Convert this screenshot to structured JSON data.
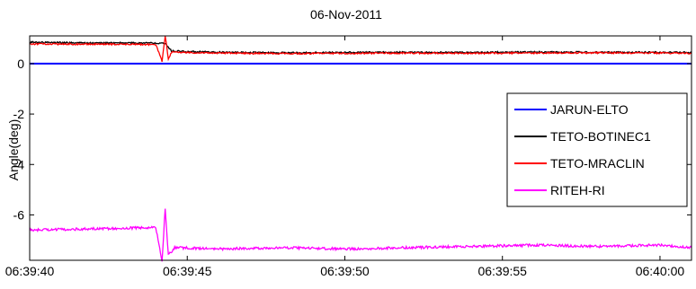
{
  "chart_data": {
    "type": "line",
    "title": "06-Nov-2011",
    "xlabel": "",
    "ylabel": "Angle(deg)",
    "xlim": [
      "06:39:40",
      "06:40:01"
    ],
    "ylim": [
      -7.8,
      1.1
    ],
    "x_ticks": [
      "06:39:40",
      "06:39:45",
      "06:39:50",
      "06:39:55",
      "06:40:00"
    ],
    "y_ticks": [
      0,
      -2,
      -4,
      -6
    ],
    "grid": false,
    "legend_position": "right",
    "series": [
      {
        "name": "JARUN-ELTO",
        "color": "#0000ff",
        "x": [
          "06:39:40",
          "06:40:01"
        ],
        "y": [
          0.0,
          0.0
        ]
      },
      {
        "name": "TETO-BOTINEC1",
        "color": "#000000",
        "x": [
          "06:39:40",
          "06:39:42",
          "06:39:44",
          "06:39:44.3",
          "06:39:44.5",
          "06:39:46",
          "06:39:48",
          "06:39:50",
          "06:39:52",
          "06:39:54",
          "06:39:56",
          "06:39:58",
          "06:40:00",
          "06:40:01"
        ],
        "y": [
          0.85,
          0.82,
          0.82,
          0.82,
          0.5,
          0.45,
          0.43,
          0.44,
          0.45,
          0.44,
          0.46,
          0.45,
          0.45,
          0.44
        ]
      },
      {
        "name": "TETO-MRACLIN",
        "color": "#ff0000",
        "x": [
          "06:39:40",
          "06:39:42",
          "06:39:44",
          "06:39:44.2",
          "06:39:44.3",
          "06:39:44.4",
          "06:39:44.5",
          "06:39:46",
          "06:39:48",
          "06:39:50",
          "06:39:52",
          "06:39:54",
          "06:39:56",
          "06:39:58",
          "06:40:00",
          "06:40:01"
        ],
        "y": [
          0.78,
          0.77,
          0.76,
          0.1,
          1.1,
          0.2,
          0.45,
          0.42,
          0.4,
          0.41,
          0.42,
          0.41,
          0.42,
          0.43,
          0.42,
          0.41
        ]
      },
      {
        "name": "RITEH-RI",
        "color": "#ff00ff",
        "x": [
          "06:39:40",
          "06:39:42",
          "06:39:44",
          "06:39:44.2",
          "06:39:44.3",
          "06:39:44.4",
          "06:39:44.6",
          "06:39:46",
          "06:39:48",
          "06:39:50",
          "06:39:52",
          "06:39:54",
          "06:39:56",
          "06:39:58",
          "06:40:00",
          "06:40:01"
        ],
        "y": [
          -6.6,
          -6.55,
          -6.5,
          -7.8,
          -5.75,
          -7.6,
          -7.3,
          -7.35,
          -7.3,
          -7.35,
          -7.3,
          -7.25,
          -7.2,
          -7.25,
          -7.2,
          -7.3
        ]
      }
    ]
  }
}
